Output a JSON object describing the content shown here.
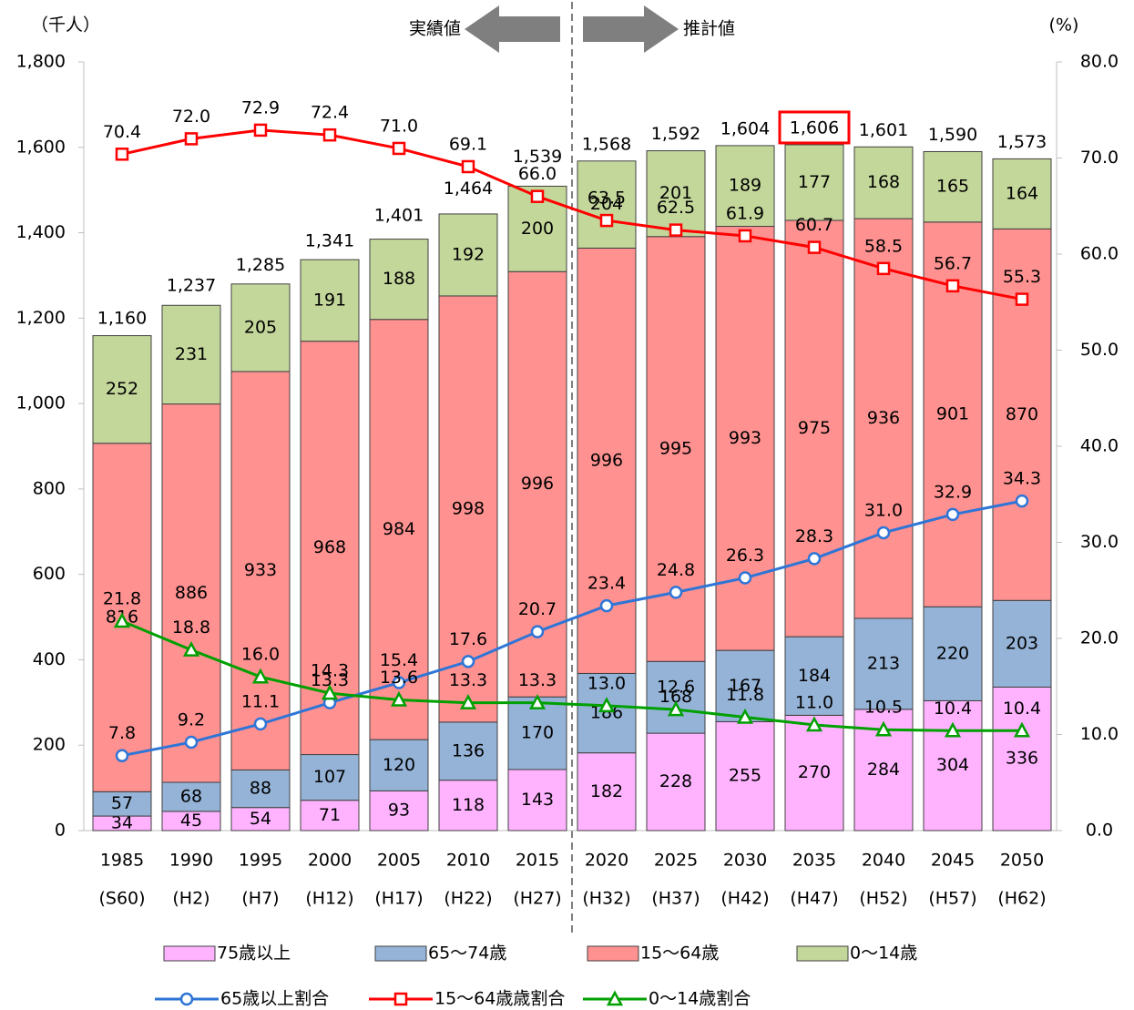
{
  "chart_data": {
    "type": "bar",
    "y_unit_label": "（千人）",
    "y2_unit_label": "(%)",
    "annotations": [
      "実績値",
      "推計値"
    ],
    "categories": [
      "1985",
      "1990",
      "1995",
      "2000",
      "2005",
      "2010",
      "2015",
      "2020",
      "2025",
      "2030",
      "2035",
      "2040",
      "2045",
      "2050"
    ],
    "category_sublabels": [
      "(S60)",
      "(H2)",
      "(H7)",
      "(H12)",
      "(H17)",
      "(H22)",
      "(H27)",
      "(H32)",
      "(H37)",
      "(H42)",
      "(H47)",
      "(H52)",
      "(H57)",
      "(H62)"
    ],
    "ylim": [
      0,
      1800
    ],
    "yticks": [
      0,
      200,
      400,
      600,
      800,
      {
        "value": 1000,
        "label": "1,000"
      },
      {
        "value": 1200,
        "label": "1,200"
      },
      {
        "value": 1400,
        "label": "1,400"
      },
      {
        "value": 1600,
        "label": "1,600"
      },
      {
        "value": 1800,
        "label": "1,800"
      }
    ],
    "y2lim": [
      0,
      80
    ],
    "y2ticks": [
      {
        "value": 0,
        "label": "0.0"
      },
      {
        "value": 10,
        "label": "10.0"
      },
      {
        "value": 20,
        "label": "20.0"
      },
      {
        "value": 30,
        "label": "30.0"
      },
      {
        "value": 40,
        "label": "40.0"
      },
      {
        "value": 50,
        "label": "50.0"
      },
      {
        "value": 60,
        "label": "60.0"
      },
      {
        "value": 70,
        "label": "70.0"
      },
      {
        "value": 80,
        "label": "80.0"
      }
    ],
    "total_values": [
      1160,
      1237,
      1285,
      1341,
      1401,
      1464,
      1539,
      1568,
      1592,
      1604,
      1606,
      1601,
      1590,
      1573
    ],
    "total_labels": [
      "1,160",
      "1,237",
      "1,285",
      "1,341",
      "1,401",
      "1,464",
      "1,539",
      "1,568",
      "1,592",
      "1,604",
      "1,606",
      "1,601",
      "1,590",
      "1,573"
    ],
    "series": [
      {
        "name": "75歳以上",
        "type": "bar",
        "color": "#ffb3ff",
        "values": [
          34,
          45,
          54,
          71,
          93,
          118,
          143,
          182,
          228,
          255,
          270,
          284,
          304,
          336
        ]
      },
      {
        "name": "65～74歳",
        "type": "bar",
        "color": "#95b3d7",
        "values": [
          57,
          68,
          88,
          107,
          120,
          136,
          170,
          186,
          168,
          167,
          184,
          213,
          220,
          203
        ]
      },
      {
        "name": "15～64歳",
        "type": "bar",
        "color": "#ff9191",
        "values": [
          816,
          886,
          933,
          968,
          984,
          998,
          996,
          996,
          995,
          993,
          975,
          936,
          901,
          870
        ]
      },
      {
        "name": "0～14歳",
        "type": "bar",
        "color": "#c4d79b",
        "values": [
          252,
          231,
          205,
          191,
          188,
          192,
          200,
          204,
          201,
          189,
          177,
          168,
          165,
          164
        ]
      },
      {
        "name": "65歳以上割合",
        "type": "line",
        "axis": "y2",
        "marker": "circle",
        "color": "#2e75d6",
        "values": [
          7.8,
          9.2,
          11.1,
          13.3,
          15.4,
          17.6,
          20.7,
          23.4,
          24.8,
          26.3,
          28.3,
          31.0,
          32.9,
          34.3
        ],
        "value_labels": [
          "7.8",
          "9.2",
          "11.1",
          "13.3",
          "15.4",
          "17.6",
          "20.7",
          "23.4",
          "24.8",
          "26.3",
          "28.3",
          "31.0",
          "32.9",
          "34.3"
        ]
      },
      {
        "name": "15～64歳歳割合",
        "type": "line",
        "axis": "y2",
        "marker": "square",
        "color": "#ff0000",
        "values": [
          70.4,
          72.0,
          72.9,
          72.4,
          71.0,
          69.1,
          66.0,
          63.5,
          62.5,
          61.9,
          60.7,
          58.5,
          56.7,
          55.3
        ],
        "value_labels": [
          "70.4",
          "72.0",
          "72.9",
          "72.4",
          "71.0",
          "69.1",
          "66.0",
          "63.5",
          "62.5",
          "61.9",
          "60.7",
          "58.5",
          "56.7",
          "55.3"
        ]
      },
      {
        "name": "0～14歳割合",
        "type": "line",
        "axis": "y2",
        "marker": "triangle",
        "color": "#00a000",
        "values": [
          21.8,
          18.8,
          16.0,
          14.3,
          13.6,
          13.3,
          13.3,
          13.0,
          12.6,
          11.8,
          11.0,
          10.5,
          10.4,
          10.4
        ],
        "value_labels": [
          "21.8",
          "18.8",
          "16.0",
          "14.3",
          "13.6",
          "13.3",
          "13.3",
          "13.0",
          "12.6",
          "11.8",
          "11.0",
          "10.5",
          "10.4",
          "10.4"
        ]
      }
    ]
  }
}
